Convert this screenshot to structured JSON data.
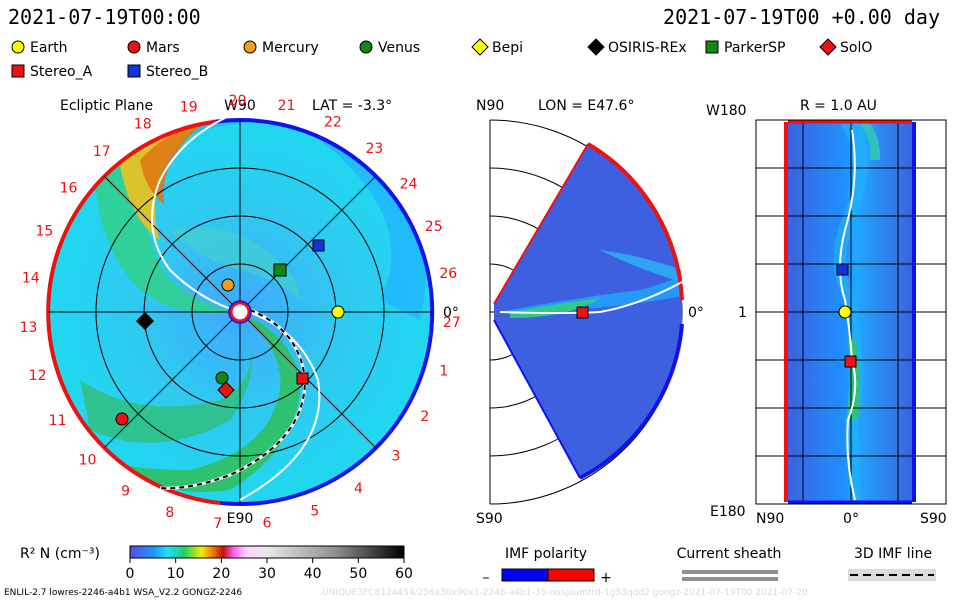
{
  "header": {
    "timestamp_left": "2021-07-19T00:00",
    "timestamp_right": "2021-07-19T00 +0.00 day"
  },
  "legend": [
    {
      "name": "Earth",
      "shape": "circle",
      "color": "#ffff00"
    },
    {
      "name": "Mars",
      "shape": "circle",
      "color": "#ee1111"
    },
    {
      "name": "Mercury",
      "shape": "circle",
      "color": "#f0a020"
    },
    {
      "name": "Venus",
      "shape": "circle",
      "color": "#118811"
    },
    {
      "name": "Bepi",
      "shape": "diamond",
      "color": "#ffff00"
    },
    {
      "name": "OSIRIS-REx",
      "shape": "diamond",
      "color": "#000000"
    },
    {
      "name": "ParkerSP",
      "shape": "square",
      "color": "#118811"
    },
    {
      "name": "SolO",
      "shape": "diamond",
      "color": "#ee1111"
    },
    {
      "name": "Stereo_A",
      "shape": "square",
      "color": "#ee1111"
    },
    {
      "name": "Stereo_B",
      "shape": "square",
      "color": "#1133dd"
    }
  ],
  "ecliptic": {
    "title": "Ecliptic Plane",
    "top_label": "W90",
    "lat_label": "LAT = -3.3°",
    "bottom_label": "E90",
    "right_label": "0°",
    "carrington_numbers": [
      "19",
      "20",
      "21",
      "22",
      "23",
      "24",
      "25",
      "26",
      "27",
      "1",
      "2",
      "3",
      "4",
      "5",
      "6",
      "7",
      "8",
      "9",
      "10",
      "11",
      "12",
      "13",
      "14",
      "15",
      "16",
      "17",
      "18"
    ]
  },
  "meridional": {
    "top_left": "N90",
    "lon_label": "LON = E47.6°",
    "right_label": "0°",
    "bottom_label": "S90"
  },
  "radial": {
    "top_left": "W180",
    "r_label": "R = 1.0 AU",
    "mid_left": "1",
    "bottom_left": "E180",
    "bottom_n": "N90",
    "bottom_0": "0°",
    "bottom_s": "S90"
  },
  "colorbar": {
    "label": "R² N (cm⁻³)",
    "ticks": [
      "0",
      "10",
      "20",
      "30",
      "40",
      "50",
      "60"
    ]
  },
  "imf": {
    "label": "IMF polarity",
    "minus": "–",
    "plus": "+",
    "neg_color": "#0000ff",
    "pos_color": "#ff0000"
  },
  "sheath": {
    "label": "Current sheath"
  },
  "imf3d": {
    "label": "3D IMF line"
  },
  "footer": {
    "left": "ENLIL-2.7 lowres-2246-a4b1 WSA_V2.2 GONGZ-2246",
    "right": "UNIQUE3FC8124454/256x30x90x1-2246-a4b1-35-nospiumtrd-1g53qdd2 gongz-2021-07-19T00 2021-07-20"
  }
}
